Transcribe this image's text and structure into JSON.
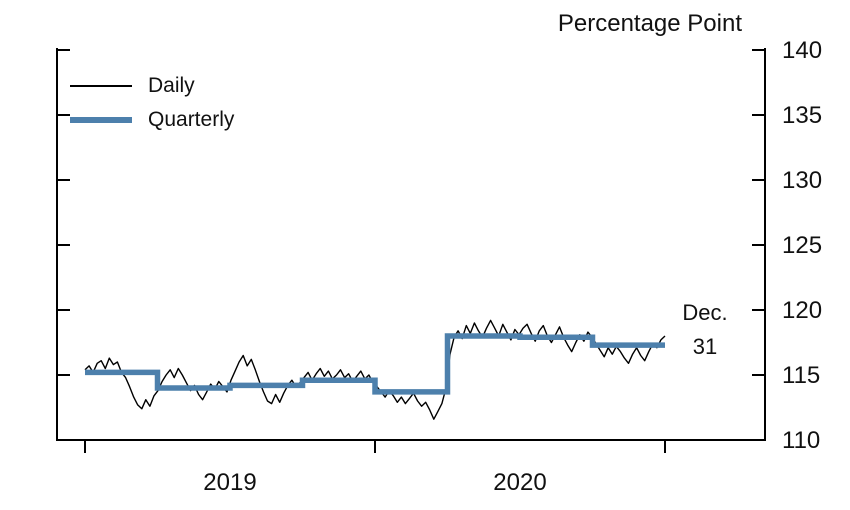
{
  "title": "Percentage Point",
  "legend": {
    "daily": "Daily",
    "quarterly": "Quarterly"
  },
  "annotation": {
    "line1": "Dec.",
    "line2": "31"
  },
  "colors": {
    "daily_line": "#000000",
    "quarterly_line": "#4d80ac",
    "text": "#111111"
  },
  "axes": {
    "y_ticks": [
      110,
      115,
      120,
      125,
      130,
      135,
      140
    ],
    "x_year_labels": [
      "2019",
      "2020"
    ],
    "ylim": [
      110,
      140
    ],
    "y_unit_label": "Percentage Point"
  },
  "chart_data": {
    "type": "line",
    "title": "Percentage Point",
    "ylabel": "Percentage Point",
    "ylim": [
      110,
      140
    ],
    "x_range": [
      "2019-01-01",
      "2020-12-31"
    ],
    "grid": false,
    "legend_position": "top-left",
    "annotation": {
      "text": "Dec. 31",
      "x": "2020-12-31",
      "y": 117.8
    },
    "series": [
      {
        "name": "Daily",
        "style": "line",
        "color": "#000000",
        "values": [
          115.4,
          115.7,
          115.2,
          115.9,
          116.1,
          115.5,
          116.3,
          115.8,
          116.0,
          115.2,
          114.8,
          114.1,
          113.3,
          112.7,
          112.4,
          113.1,
          112.6,
          113.4,
          113.8,
          114.5,
          115.0,
          115.4,
          114.8,
          115.5,
          115.0,
          114.4,
          113.8,
          114.2,
          113.5,
          113.1,
          113.7,
          114.3,
          113.9,
          114.5,
          114.1,
          113.7,
          114.6,
          115.3,
          116.0,
          116.5,
          115.7,
          116.2,
          115.4,
          114.5,
          113.7,
          113.0,
          112.8,
          113.5,
          112.9,
          113.6,
          114.2,
          114.6,
          114.1,
          114.4,
          114.8,
          115.2,
          114.6,
          115.1,
          115.5,
          114.9,
          115.3,
          114.7,
          115.0,
          115.4,
          114.8,
          115.1,
          114.5,
          114.9,
          115.3,
          114.7,
          115.0,
          114.4,
          114.1,
          113.7,
          113.3,
          113.8,
          113.4,
          112.9,
          113.3,
          112.8,
          113.2,
          113.6,
          113.0,
          112.6,
          112.9,
          112.3,
          111.6,
          112.2,
          112.8,
          114.0,
          116.6,
          117.9,
          118.4,
          117.8,
          118.8,
          118.2,
          119.0,
          118.4,
          117.9,
          118.6,
          119.2,
          118.6,
          118.0,
          118.9,
          118.3,
          117.7,
          118.5,
          118.1,
          118.6,
          118.9,
          118.2,
          117.6,
          118.4,
          118.8,
          118.0,
          117.5,
          118.1,
          118.7,
          117.9,
          117.3,
          116.8,
          117.5,
          118.1,
          117.6,
          118.3,
          117.9,
          117.4,
          116.9,
          116.4,
          117.1,
          116.6,
          117.2,
          116.8,
          116.3,
          115.9,
          116.6,
          117.1,
          116.5,
          116.1,
          116.8,
          117.4,
          117.1,
          117.7,
          118.0
        ]
      },
      {
        "name": "Quarterly",
        "style": "step",
        "color": "#4d80ac",
        "categories": [
          "2019 Q1",
          "2019 Q2",
          "2019 Q3",
          "2019 Q4",
          "2020 Q1",
          "2020 Q2",
          "2020 Q3",
          "2020 Q4"
        ],
        "values": [
          115.2,
          114.0,
          114.2,
          114.6,
          113.7,
          118.0,
          117.9,
          117.3
        ]
      }
    ]
  }
}
